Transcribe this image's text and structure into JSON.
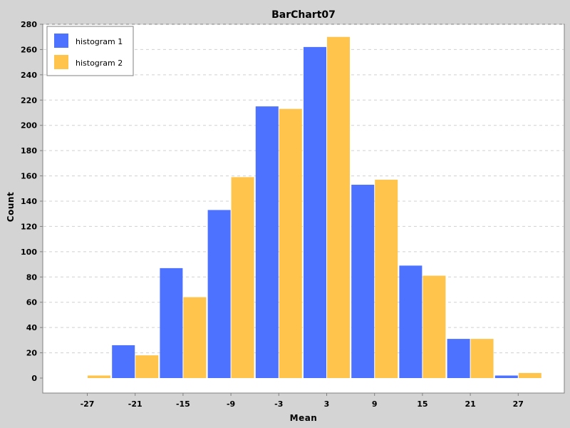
{
  "chart_data": {
    "type": "bar",
    "title": "BarChart07",
    "xlabel": "Mean",
    "ylabel": "Count",
    "categories": [
      "-27",
      "-21",
      "-15",
      "-9",
      "-3",
      "3",
      "9",
      "15",
      "21",
      "27"
    ],
    "series": [
      {
        "name": "histogram 1",
        "color": "#4c72ff",
        "values": [
          0,
          26,
          87,
          133,
          215,
          262,
          153,
          89,
          31,
          2
        ]
      },
      {
        "name": "histogram 2",
        "color": "#ffc44c",
        "values": [
          2,
          18,
          64,
          159,
          213,
          270,
          157,
          81,
          31,
          4
        ]
      }
    ],
    "ylim": [
      0,
      280
    ],
    "yticks": [
      0,
      20,
      40,
      60,
      80,
      100,
      120,
      140,
      160,
      180,
      200,
      220,
      240,
      260,
      280
    ],
    "grid": "horizontal dashed",
    "legend_position": "top-left",
    "colors": {
      "background": "#d4d4d4",
      "plot_background": "#ffffff",
      "grid": "#d0d0d0"
    }
  }
}
